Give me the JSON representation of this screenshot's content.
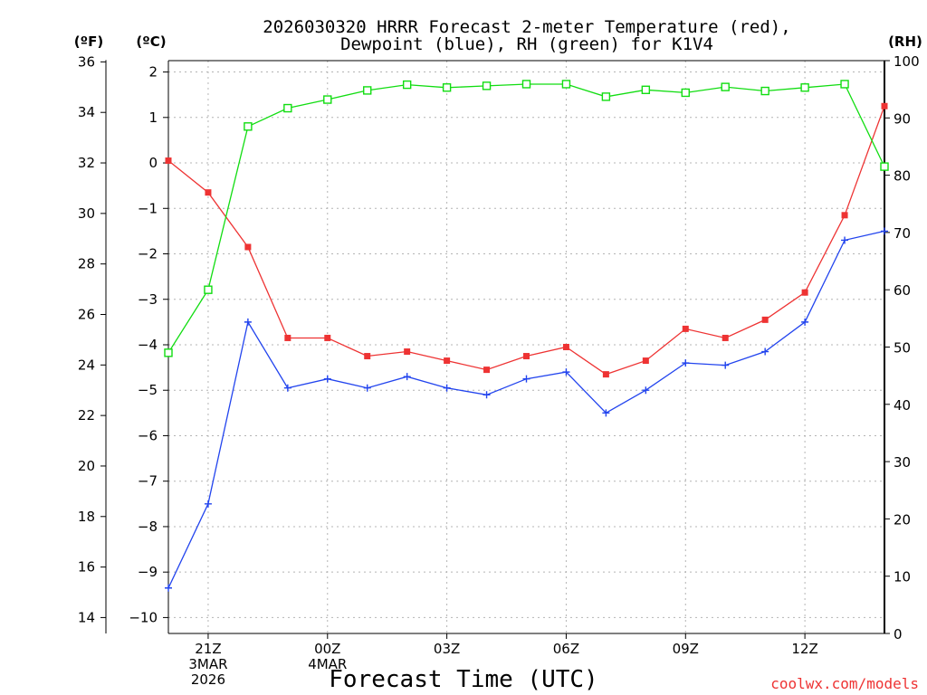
{
  "chart_data": {
    "type": "line",
    "title_line1": "2026030320 HRRR Forecast 2-meter Temperature (red),",
    "title_line2": "Dewpoint (blue), RH (green) for K1V4",
    "xlabel": "Forecast Time (UTC)",
    "watermark": "coolwx.com/models",
    "units": {
      "fahrenheit": "(ºF)",
      "celsius": "(ºC)",
      "rh": "(RH)"
    },
    "hours": [
      20,
      21,
      22,
      23,
      24,
      25,
      26,
      27,
      28,
      29,
      30,
      31,
      32,
      33,
      34,
      35,
      36,
      37,
      38
    ],
    "x_ticks": [
      {
        "hour": 21,
        "lines": [
          "21Z",
          "3MAR",
          "2026"
        ]
      },
      {
        "hour": 24,
        "lines": [
          "00Z",
          "4MAR"
        ]
      },
      {
        "hour": 27,
        "lines": [
          "03Z"
        ]
      },
      {
        "hour": 30,
        "lines": [
          "06Z"
        ]
      },
      {
        "hour": 33,
        "lines": [
          "09Z"
        ]
      },
      {
        "hour": 36,
        "lines": [
          "12Z"
        ]
      }
    ],
    "xlim": [
      20,
      38
    ],
    "ylim_celsius": [
      -10.35,
      2.25
    ],
    "fahrenheit_ticks": [
      "36",
      "34",
      "32",
      "30",
      "28",
      "26",
      "24",
      "22",
      "20",
      "18",
      "16",
      "14"
    ],
    "celsius_ticks": [
      "2",
      "1",
      "0",
      "−1",
      "−2",
      "−3",
      "−4",
      "−5",
      "−6",
      "−7",
      "−8",
      "−9",
      "−10"
    ],
    "rh_ticks": [
      "100",
      "90",
      "80",
      "70",
      "60",
      "50",
      "40",
      "30",
      "20",
      "10",
      "0"
    ],
    "ylim_rh": [
      0,
      100
    ],
    "grid": true,
    "series": [
      {
        "name": "Temperature",
        "unit": "C",
        "color": "#ee3333",
        "marker": "filled-square",
        "values": [
          0.05,
          -0.65,
          -1.85,
          -3.85,
          -3.85,
          -4.25,
          -4.15,
          -4.35,
          -4.55,
          -4.25,
          -4.05,
          -4.65,
          -4.35,
          -3.65,
          -3.85,
          -3.45,
          -2.85,
          -1.15,
          1.25
        ]
      },
      {
        "name": "Dewpoint",
        "unit": "C",
        "color": "#2244ee",
        "marker": "plus",
        "values": [
          -9.35,
          -7.5,
          -3.5,
          -4.95,
          -4.75,
          -4.95,
          -4.7,
          -4.95,
          -5.1,
          -4.75,
          -4.6,
          -5.5,
          -5.0,
          -4.4,
          -4.45,
          -4.15,
          -3.5,
          -1.7,
          -1.5
        ]
      },
      {
        "name": "RH",
        "unit": "%",
        "color": "#11dd11",
        "marker": "open-square",
        "values": [
          49,
          60,
          88.5,
          91.7,
          93.2,
          94.8,
          95.8,
          95.3,
          95.6,
          95.9,
          95.9,
          93.7,
          94.9,
          94.4,
          95.4,
          94.7,
          95.3,
          95.9,
          81.5
        ]
      }
    ]
  }
}
